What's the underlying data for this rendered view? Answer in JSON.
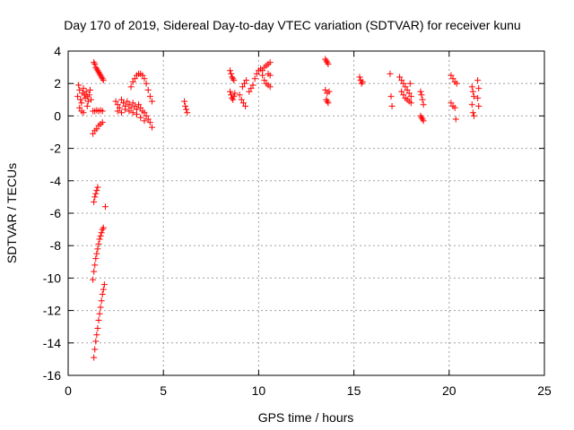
{
  "chart_data": {
    "type": "scatter",
    "title": "Day 170 of 2019, Sidereal Day-to-day VTEC variation (SDTVAR) for receiver kunu",
    "xlabel": "GPS time / hours",
    "ylabel": "SDTVAR / TECUs",
    "xlim": [
      0,
      25
    ],
    "ylim": [
      -16,
      4
    ],
    "x_ticks": [
      0,
      5,
      10,
      15,
      20,
      25
    ],
    "y_ticks": [
      -16,
      -14,
      -12,
      -10,
      -8,
      -6,
      -4,
      -2,
      0,
      2,
      4
    ],
    "grid": true,
    "marker": "+",
    "series_color": "#ff0000",
    "series": [
      {
        "name": "SDTVAR",
        "points": [
          [
            0.5,
            1.2
          ],
          [
            0.55,
            1.9
          ],
          [
            0.6,
            1.6
          ],
          [
            0.65,
            1.0
          ],
          [
            0.7,
            0.8
          ],
          [
            0.75,
            1.4
          ],
          [
            0.8,
            1.7
          ],
          [
            0.85,
            1.3
          ],
          [
            0.9,
            1.1
          ],
          [
            0.95,
            1.5
          ],
          [
            1.0,
            1.2
          ],
          [
            1.05,
            0.9
          ],
          [
            1.1,
            1.3
          ],
          [
            1.15,
            1.6
          ],
          [
            1.2,
            1.0
          ],
          [
            0.6,
            0.5
          ],
          [
            0.7,
            0.3
          ],
          [
            0.8,
            0.2
          ],
          [
            1.0,
            0.6
          ],
          [
            1.3,
            0.3
          ],
          [
            1.4,
            0.3
          ],
          [
            1.5,
            0.35
          ],
          [
            1.6,
            0.3
          ],
          [
            1.7,
            0.35
          ],
          [
            1.8,
            0.3
          ],
          [
            1.3,
            -1.1
          ],
          [
            1.4,
            -0.9
          ],
          [
            1.5,
            -0.8
          ],
          [
            1.6,
            -0.6
          ],
          [
            1.7,
            -0.5
          ],
          [
            1.8,
            -0.4
          ],
          [
            1.35,
            3.3
          ],
          [
            1.4,
            3.2
          ],
          [
            1.45,
            3.0
          ],
          [
            1.5,
            2.9
          ],
          [
            1.55,
            2.8
          ],
          [
            1.6,
            2.7
          ],
          [
            1.65,
            2.6
          ],
          [
            1.7,
            2.5
          ],
          [
            1.75,
            2.4
          ],
          [
            1.8,
            2.3
          ],
          [
            1.85,
            2.2
          ],
          [
            1.35,
            -5.3
          ],
          [
            1.4,
            -5.0
          ],
          [
            1.45,
            -4.8
          ],
          [
            1.5,
            -4.6
          ],
          [
            1.55,
            -4.4
          ],
          [
            1.95,
            -5.6
          ],
          [
            1.3,
            -10.1
          ],
          [
            1.35,
            -9.6
          ],
          [
            1.4,
            -9.2
          ],
          [
            1.45,
            -8.8
          ],
          [
            1.5,
            -8.5
          ],
          [
            1.55,
            -8.2
          ],
          [
            1.6,
            -7.9
          ],
          [
            1.65,
            -7.6
          ],
          [
            1.7,
            -7.4
          ],
          [
            1.75,
            -7.2
          ],
          [
            1.8,
            -7.0
          ],
          [
            1.85,
            -6.9
          ],
          [
            1.35,
            -14.9
          ],
          [
            1.4,
            -14.4
          ],
          [
            1.45,
            -13.9
          ],
          [
            1.5,
            -13.5
          ],
          [
            1.55,
            -13.1
          ],
          [
            1.6,
            -12.6
          ],
          [
            1.65,
            -12.2
          ],
          [
            1.7,
            -11.8
          ],
          [
            1.75,
            -11.4
          ],
          [
            1.8,
            -11.0
          ],
          [
            1.85,
            -10.7
          ],
          [
            1.9,
            -10.4
          ],
          [
            2.5,
            0.9
          ],
          [
            2.6,
            0.7
          ],
          [
            2.7,
            0.5
          ],
          [
            2.8,
            1.0
          ],
          [
            2.9,
            0.8
          ],
          [
            3.0,
            0.6
          ],
          [
            3.1,
            0.9
          ],
          [
            3.2,
            0.7
          ],
          [
            3.3,
            0.5
          ],
          [
            3.4,
            0.8
          ],
          [
            3.5,
            0.6
          ],
          [
            3.6,
            0.4
          ],
          [
            3.7,
            0.7
          ],
          [
            3.8,
            0.5
          ],
          [
            3.9,
            0.3
          ],
          [
            4.0,
            0.2
          ],
          [
            4.1,
            0.0
          ],
          [
            4.2,
            -0.2
          ],
          [
            4.3,
            -0.4
          ],
          [
            4.4,
            -0.7
          ],
          [
            2.6,
            0.3
          ],
          [
            2.8,
            0.2
          ],
          [
            3.0,
            0.4
          ],
          [
            3.2,
            0.3
          ],
          [
            3.4,
            0.2
          ],
          [
            3.6,
            0.1
          ],
          [
            3.8,
            -0.1
          ],
          [
            4.0,
            -0.3
          ],
          [
            3.3,
            1.8
          ],
          [
            3.4,
            2.1
          ],
          [
            3.5,
            2.3
          ],
          [
            3.6,
            2.5
          ],
          [
            3.7,
            2.6
          ],
          [
            3.8,
            2.6
          ],
          [
            3.9,
            2.5
          ],
          [
            4.0,
            2.3
          ],
          [
            4.1,
            2.0
          ],
          [
            4.2,
            1.6
          ],
          [
            4.3,
            1.2
          ],
          [
            4.4,
            0.9
          ],
          [
            6.1,
            0.9
          ],
          [
            6.15,
            0.6
          ],
          [
            6.2,
            0.4
          ],
          [
            6.25,
            0.2
          ],
          [
            8.5,
            2.8
          ],
          [
            8.55,
            2.6
          ],
          [
            8.6,
            2.4
          ],
          [
            8.65,
            2.3
          ],
          [
            8.7,
            2.2
          ],
          [
            8.5,
            1.5
          ],
          [
            8.55,
            1.3
          ],
          [
            8.6,
            1.1
          ],
          [
            8.65,
            1.0
          ],
          [
            8.7,
            1.2
          ],
          [
            8.75,
            1.4
          ],
          [
            9.0,
            1.3
          ],
          [
            9.1,
            1.0
          ],
          [
            9.2,
            0.8
          ],
          [
            9.3,
            0.6
          ],
          [
            9.15,
            1.8
          ],
          [
            9.25,
            2.0
          ],
          [
            9.35,
            2.2
          ],
          [
            9.5,
            1.5
          ],
          [
            9.6,
            1.7
          ],
          [
            9.7,
            1.9
          ],
          [
            9.8,
            2.3
          ],
          [
            9.9,
            2.6
          ],
          [
            10.0,
            2.8
          ],
          [
            10.1,
            2.9
          ],
          [
            10.2,
            2.8
          ],
          [
            10.3,
            3.0
          ],
          [
            10.4,
            3.1
          ],
          [
            10.5,
            3.2
          ],
          [
            10.6,
            3.3
          ],
          [
            10.5,
            2.6
          ],
          [
            10.6,
            2.5
          ],
          [
            10.3,
            2.2
          ],
          [
            10.4,
            2.0
          ],
          [
            10.5,
            1.9
          ],
          [
            10.6,
            1.8
          ],
          [
            10.2,
            2.5
          ],
          [
            13.5,
            3.5
          ],
          [
            13.55,
            3.4
          ],
          [
            13.6,
            3.3
          ],
          [
            13.65,
            3.2
          ],
          [
            13.5,
            1.6
          ],
          [
            13.6,
            1.4
          ],
          [
            13.7,
            1.5
          ],
          [
            13.55,
            1.0
          ],
          [
            13.6,
            0.9
          ],
          [
            13.65,
            0.8
          ],
          [
            15.3,
            2.4
          ],
          [
            15.35,
            2.2
          ],
          [
            15.4,
            2.0
          ],
          [
            15.45,
            2.1
          ],
          [
            16.9,
            2.6
          ],
          [
            16.95,
            1.2
          ],
          [
            17.0,
            0.6
          ],
          [
            17.4,
            2.4
          ],
          [
            17.5,
            2.2
          ],
          [
            17.6,
            2.0
          ],
          [
            17.7,
            1.8
          ],
          [
            17.5,
            1.5
          ],
          [
            17.6,
            1.3
          ],
          [
            17.7,
            1.1
          ],
          [
            17.8,
            1.0
          ],
          [
            17.9,
            0.9
          ],
          [
            18.0,
            0.8
          ],
          [
            17.8,
            1.6
          ],
          [
            17.9,
            1.4
          ],
          [
            18.0,
            1.2
          ],
          [
            17.95,
            2.0
          ],
          [
            18.5,
            1.5
          ],
          [
            18.55,
            1.3
          ],
          [
            18.6,
            1.0
          ],
          [
            18.65,
            0.7
          ],
          [
            18.5,
            0.0
          ],
          [
            18.55,
            -0.1
          ],
          [
            18.6,
            -0.2
          ],
          [
            18.65,
            -0.3
          ],
          [
            20.1,
            2.5
          ],
          [
            20.2,
            2.3
          ],
          [
            20.3,
            2.1
          ],
          [
            20.4,
            2.0
          ],
          [
            20.1,
            0.8
          ],
          [
            20.2,
            0.6
          ],
          [
            20.3,
            0.5
          ],
          [
            20.35,
            -0.2
          ],
          [
            21.2,
            1.8
          ],
          [
            21.25,
            1.5
          ],
          [
            21.3,
            1.2
          ],
          [
            21.2,
            0.7
          ],
          [
            21.25,
            0.2
          ],
          [
            21.3,
            0.0
          ],
          [
            21.5,
            2.2
          ],
          [
            21.55,
            1.7
          ],
          [
            21.5,
            1.1
          ],
          [
            21.55,
            0.6
          ]
        ]
      }
    ]
  }
}
